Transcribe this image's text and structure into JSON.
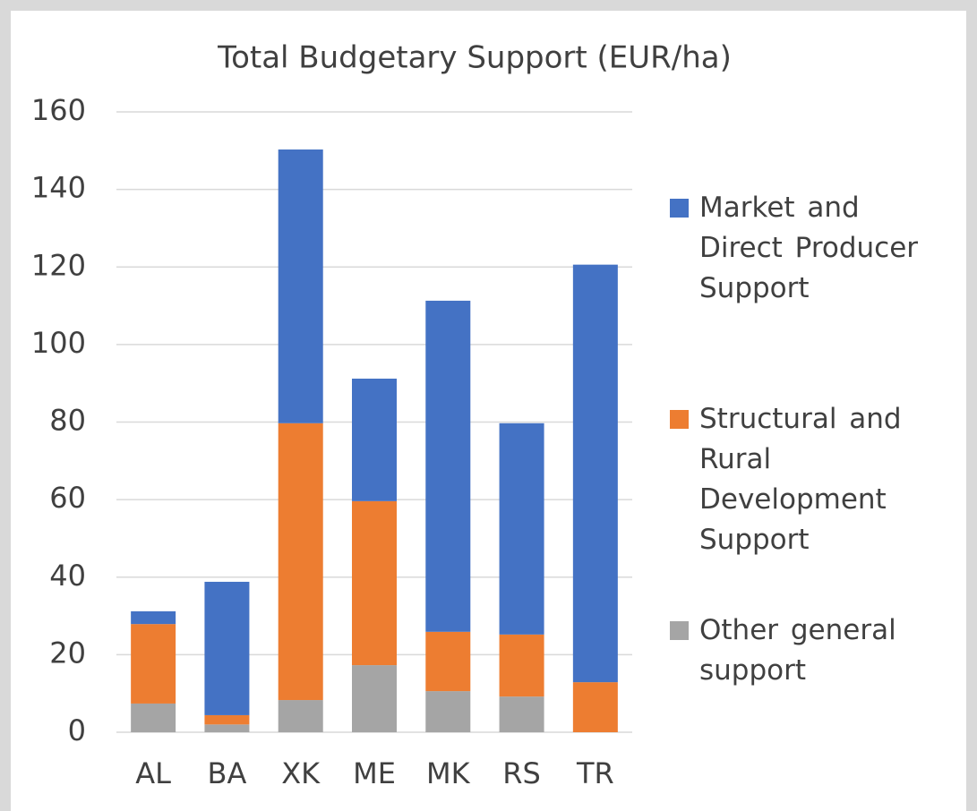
{
  "chart_data": {
    "type": "stacked_bar",
    "title": "Total Budgetary Support (EUR/ha)",
    "categories": [
      "AL",
      "BA",
      "XK",
      "ME",
      "MK",
      "RS",
      "TR"
    ],
    "series": [
      {
        "name": "Other general support",
        "color": "#a5a5a5",
        "values": [
          7.4,
          2,
          8.3,
          17.3,
          10.6,
          9.2,
          0
        ]
      },
      {
        "name": "Structural and Rural Development Support",
        "color": "#ed7d31",
        "values": [
          20.5,
          2.4,
          71.4,
          42.3,
          15.3,
          16,
          12.9
        ]
      },
      {
        "name": "Market and Direct Producer Support",
        "color": "#4472c4",
        "values": [
          3.3,
          34.4,
          70.6,
          31.6,
          85.4,
          54.5,
          107.7
        ]
      }
    ],
    "ylim": [
      0,
      160
    ],
    "yticks": [
      0,
      20,
      40,
      60,
      80,
      100,
      120,
      140,
      160
    ],
    "grid": true,
    "legend": "right"
  }
}
